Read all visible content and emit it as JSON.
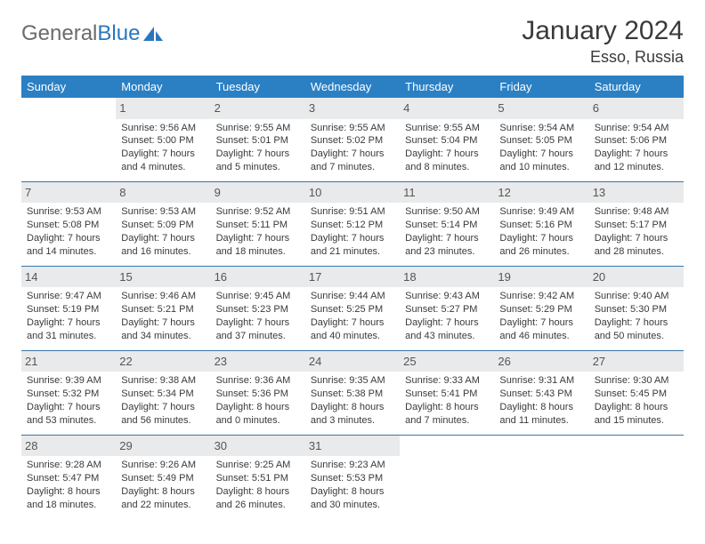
{
  "brand": {
    "name_a": "General",
    "name_b": "Blue"
  },
  "title": "January 2024",
  "location": "Esso, Russia",
  "colors": {
    "header_bg": "#2b80c4",
    "header_fg": "#ffffff",
    "rule": "#3a76a8",
    "daynum_bg": "#e9eaeb",
    "text": "#3a3a3a",
    "logo_grey": "#6b6b6b",
    "logo_blue": "#2b77bd"
  },
  "dow": [
    "Sunday",
    "Monday",
    "Tuesday",
    "Wednesday",
    "Thursday",
    "Friday",
    "Saturday"
  ],
  "weeks": [
    [
      null,
      {
        "n": "1",
        "sr": "Sunrise: 9:56 AM",
        "ss": "Sunset: 5:00 PM",
        "d1": "Daylight: 7 hours",
        "d2": "and 4 minutes."
      },
      {
        "n": "2",
        "sr": "Sunrise: 9:55 AM",
        "ss": "Sunset: 5:01 PM",
        "d1": "Daylight: 7 hours",
        "d2": "and 5 minutes."
      },
      {
        "n": "3",
        "sr": "Sunrise: 9:55 AM",
        "ss": "Sunset: 5:02 PM",
        "d1": "Daylight: 7 hours",
        "d2": "and 7 minutes."
      },
      {
        "n": "4",
        "sr": "Sunrise: 9:55 AM",
        "ss": "Sunset: 5:04 PM",
        "d1": "Daylight: 7 hours",
        "d2": "and 8 minutes."
      },
      {
        "n": "5",
        "sr": "Sunrise: 9:54 AM",
        "ss": "Sunset: 5:05 PM",
        "d1": "Daylight: 7 hours",
        "d2": "and 10 minutes."
      },
      {
        "n": "6",
        "sr": "Sunrise: 9:54 AM",
        "ss": "Sunset: 5:06 PM",
        "d1": "Daylight: 7 hours",
        "d2": "and 12 minutes."
      }
    ],
    [
      {
        "n": "7",
        "sr": "Sunrise: 9:53 AM",
        "ss": "Sunset: 5:08 PM",
        "d1": "Daylight: 7 hours",
        "d2": "and 14 minutes."
      },
      {
        "n": "8",
        "sr": "Sunrise: 9:53 AM",
        "ss": "Sunset: 5:09 PM",
        "d1": "Daylight: 7 hours",
        "d2": "and 16 minutes."
      },
      {
        "n": "9",
        "sr": "Sunrise: 9:52 AM",
        "ss": "Sunset: 5:11 PM",
        "d1": "Daylight: 7 hours",
        "d2": "and 18 minutes."
      },
      {
        "n": "10",
        "sr": "Sunrise: 9:51 AM",
        "ss": "Sunset: 5:12 PM",
        "d1": "Daylight: 7 hours",
        "d2": "and 21 minutes."
      },
      {
        "n": "11",
        "sr": "Sunrise: 9:50 AM",
        "ss": "Sunset: 5:14 PM",
        "d1": "Daylight: 7 hours",
        "d2": "and 23 minutes."
      },
      {
        "n": "12",
        "sr": "Sunrise: 9:49 AM",
        "ss": "Sunset: 5:16 PM",
        "d1": "Daylight: 7 hours",
        "d2": "and 26 minutes."
      },
      {
        "n": "13",
        "sr": "Sunrise: 9:48 AM",
        "ss": "Sunset: 5:17 PM",
        "d1": "Daylight: 7 hours",
        "d2": "and 28 minutes."
      }
    ],
    [
      {
        "n": "14",
        "sr": "Sunrise: 9:47 AM",
        "ss": "Sunset: 5:19 PM",
        "d1": "Daylight: 7 hours",
        "d2": "and 31 minutes."
      },
      {
        "n": "15",
        "sr": "Sunrise: 9:46 AM",
        "ss": "Sunset: 5:21 PM",
        "d1": "Daylight: 7 hours",
        "d2": "and 34 minutes."
      },
      {
        "n": "16",
        "sr": "Sunrise: 9:45 AM",
        "ss": "Sunset: 5:23 PM",
        "d1": "Daylight: 7 hours",
        "d2": "and 37 minutes."
      },
      {
        "n": "17",
        "sr": "Sunrise: 9:44 AM",
        "ss": "Sunset: 5:25 PM",
        "d1": "Daylight: 7 hours",
        "d2": "and 40 minutes."
      },
      {
        "n": "18",
        "sr": "Sunrise: 9:43 AM",
        "ss": "Sunset: 5:27 PM",
        "d1": "Daylight: 7 hours",
        "d2": "and 43 minutes."
      },
      {
        "n": "19",
        "sr": "Sunrise: 9:42 AM",
        "ss": "Sunset: 5:29 PM",
        "d1": "Daylight: 7 hours",
        "d2": "and 46 minutes."
      },
      {
        "n": "20",
        "sr": "Sunrise: 9:40 AM",
        "ss": "Sunset: 5:30 PM",
        "d1": "Daylight: 7 hours",
        "d2": "and 50 minutes."
      }
    ],
    [
      {
        "n": "21",
        "sr": "Sunrise: 9:39 AM",
        "ss": "Sunset: 5:32 PM",
        "d1": "Daylight: 7 hours",
        "d2": "and 53 minutes."
      },
      {
        "n": "22",
        "sr": "Sunrise: 9:38 AM",
        "ss": "Sunset: 5:34 PM",
        "d1": "Daylight: 7 hours",
        "d2": "and 56 minutes."
      },
      {
        "n": "23",
        "sr": "Sunrise: 9:36 AM",
        "ss": "Sunset: 5:36 PM",
        "d1": "Daylight: 8 hours",
        "d2": "and 0 minutes."
      },
      {
        "n": "24",
        "sr": "Sunrise: 9:35 AM",
        "ss": "Sunset: 5:38 PM",
        "d1": "Daylight: 8 hours",
        "d2": "and 3 minutes."
      },
      {
        "n": "25",
        "sr": "Sunrise: 9:33 AM",
        "ss": "Sunset: 5:41 PM",
        "d1": "Daylight: 8 hours",
        "d2": "and 7 minutes."
      },
      {
        "n": "26",
        "sr": "Sunrise: 9:31 AM",
        "ss": "Sunset: 5:43 PM",
        "d1": "Daylight: 8 hours",
        "d2": "and 11 minutes."
      },
      {
        "n": "27",
        "sr": "Sunrise: 9:30 AM",
        "ss": "Sunset: 5:45 PM",
        "d1": "Daylight: 8 hours",
        "d2": "and 15 minutes."
      }
    ],
    [
      {
        "n": "28",
        "sr": "Sunrise: 9:28 AM",
        "ss": "Sunset: 5:47 PM",
        "d1": "Daylight: 8 hours",
        "d2": "and 18 minutes."
      },
      {
        "n": "29",
        "sr": "Sunrise: 9:26 AM",
        "ss": "Sunset: 5:49 PM",
        "d1": "Daylight: 8 hours",
        "d2": "and 22 minutes."
      },
      {
        "n": "30",
        "sr": "Sunrise: 9:25 AM",
        "ss": "Sunset: 5:51 PM",
        "d1": "Daylight: 8 hours",
        "d2": "and 26 minutes."
      },
      {
        "n": "31",
        "sr": "Sunrise: 9:23 AM",
        "ss": "Sunset: 5:53 PM",
        "d1": "Daylight: 8 hours",
        "d2": "and 30 minutes."
      },
      null,
      null,
      null
    ]
  ]
}
